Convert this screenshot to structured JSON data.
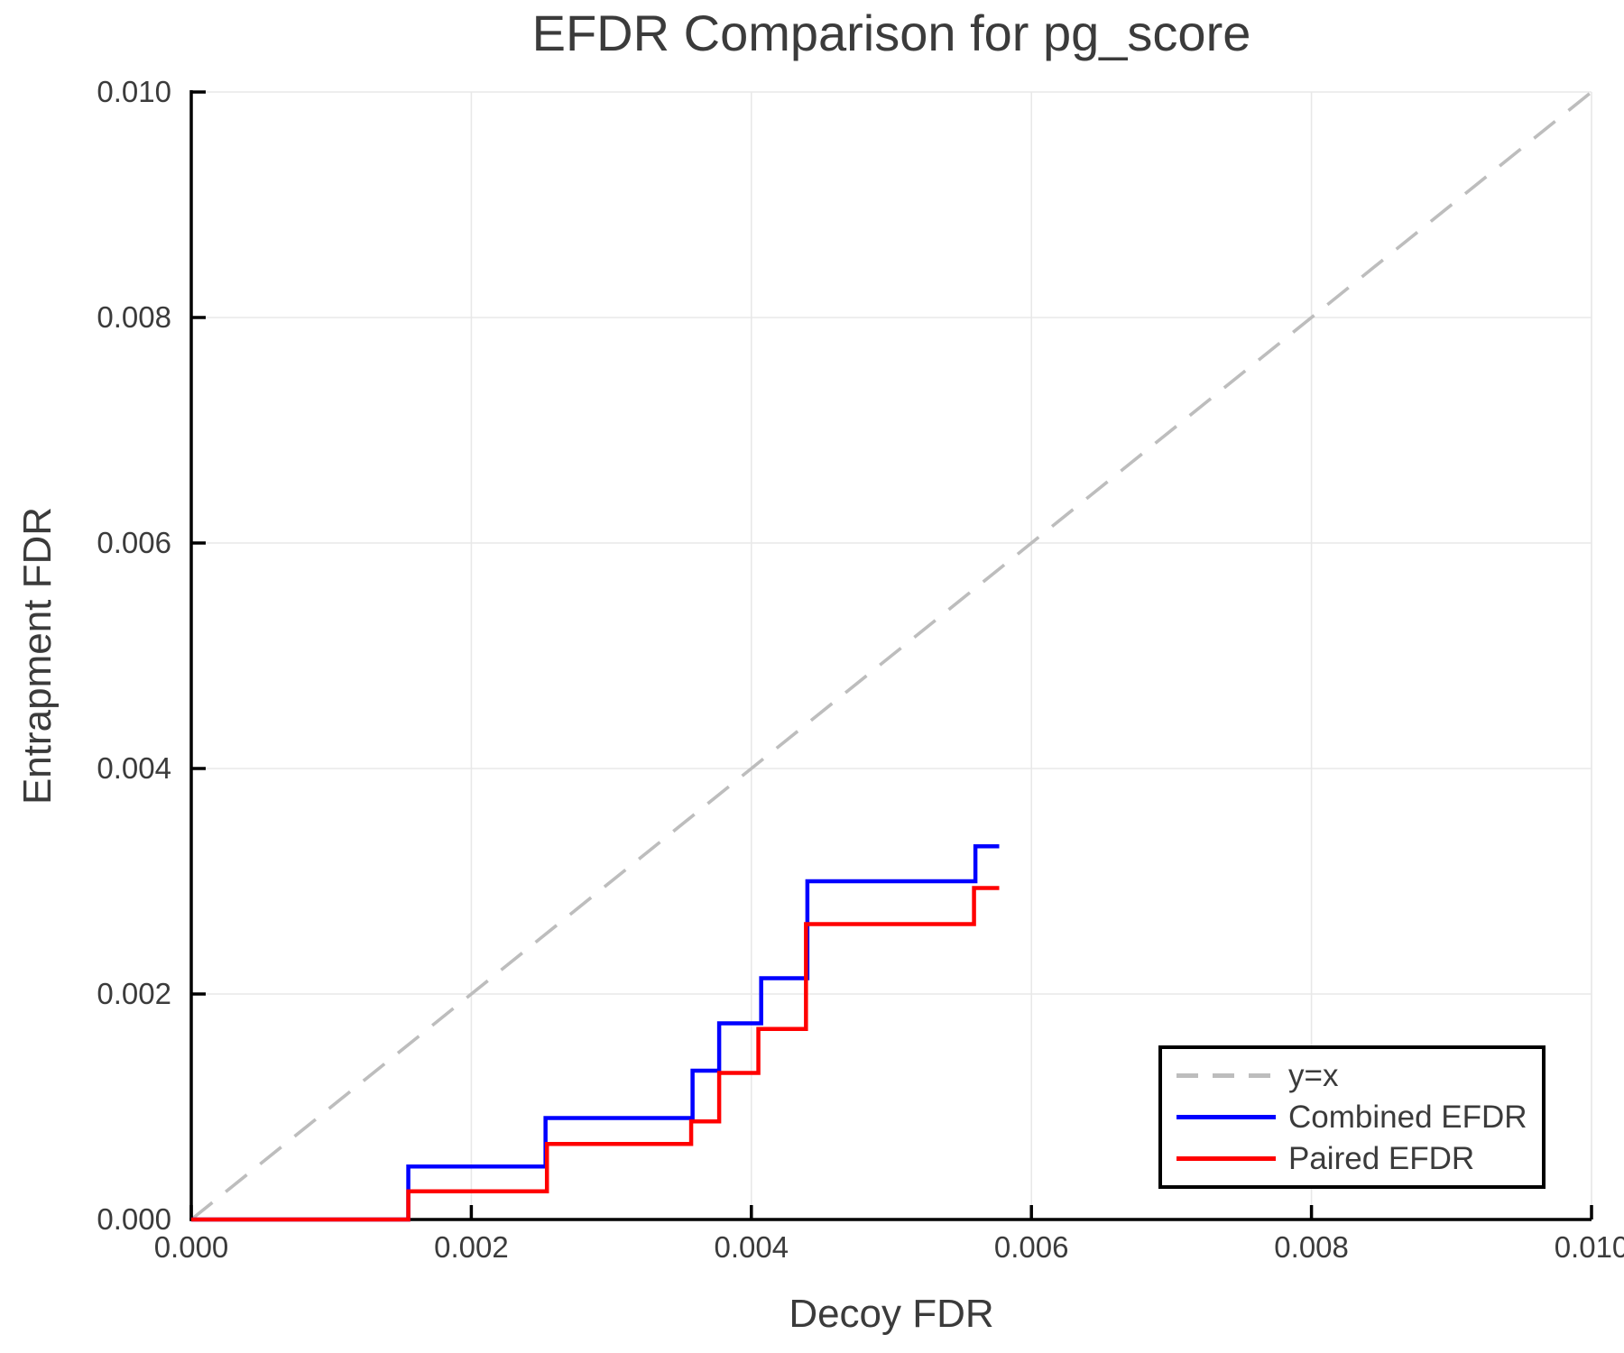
{
  "title": "EFDR Comparison for pg_score",
  "chart_data": {
    "type": "line",
    "subtype": "step",
    "title": "EFDR Comparison for pg_score",
    "xlabel": "Decoy FDR",
    "ylabel": "Entrapment FDR",
    "xlim": [
      0.0,
      0.01
    ],
    "ylim": [
      0.0,
      0.01
    ],
    "grid": true,
    "legend_position": "lower right",
    "xtick_values": [
      0.0,
      0.002,
      0.004,
      0.006,
      0.008,
      0.01
    ],
    "xtick_labels": [
      "0.000",
      "0.002",
      "0.004",
      "0.006",
      "0.008",
      "0.010"
    ],
    "ytick_values": [
      0.0,
      0.002,
      0.004,
      0.006,
      0.008,
      0.01
    ],
    "ytick_labels": [
      "0.000",
      "0.002",
      "0.004",
      "0.006",
      "0.008",
      "0.010"
    ],
    "colors": {
      "grid": "#e8e8e8",
      "spine": "#000000",
      "text": "#3b3b3b",
      "reference": "#bdbdbd",
      "combined": "#0000ff",
      "paired": "#ff0000"
    },
    "reference_line": {
      "label": "y=x",
      "color": "#bdbdbd",
      "dashed": true,
      "points": [
        [
          0.0,
          0.0
        ],
        [
          0.01,
          0.01
        ]
      ]
    },
    "series": [
      {
        "name": "Combined EFDR",
        "color": "#0000ff",
        "points": [
          [
            0.0,
            0.0
          ],
          [
            0.00155,
            0.0
          ],
          [
            0.00155,
            0.00047
          ],
          [
            0.00253,
            0.00047
          ],
          [
            0.00253,
            0.0009
          ],
          [
            0.00358,
            0.0009
          ],
          [
            0.00358,
            0.00132
          ],
          [
            0.00377,
            0.00132
          ],
          [
            0.00377,
            0.00174
          ],
          [
            0.00407,
            0.00174
          ],
          [
            0.00407,
            0.00214
          ],
          [
            0.0044,
            0.00214
          ],
          [
            0.0044,
            0.003
          ],
          [
            0.0056,
            0.003
          ],
          [
            0.0056,
            0.00331
          ],
          [
            0.00577,
            0.00331
          ]
        ]
      },
      {
        "name": "Paired EFDR",
        "color": "#ff0000",
        "points": [
          [
            0.0,
            0.0
          ],
          [
            0.00155,
            0.0
          ],
          [
            0.00155,
            0.00025
          ],
          [
            0.00254,
            0.00025
          ],
          [
            0.00254,
            0.00067
          ],
          [
            0.00357,
            0.00067
          ],
          [
            0.00357,
            0.00087
          ],
          [
            0.00377,
            0.00087
          ],
          [
            0.00377,
            0.0013
          ],
          [
            0.00405,
            0.0013
          ],
          [
            0.00405,
            0.00169
          ],
          [
            0.00439,
            0.00169
          ],
          [
            0.00439,
            0.00262
          ],
          [
            0.00559,
            0.00262
          ],
          [
            0.00559,
            0.00294
          ],
          [
            0.00577,
            0.00294
          ]
        ]
      }
    ]
  }
}
